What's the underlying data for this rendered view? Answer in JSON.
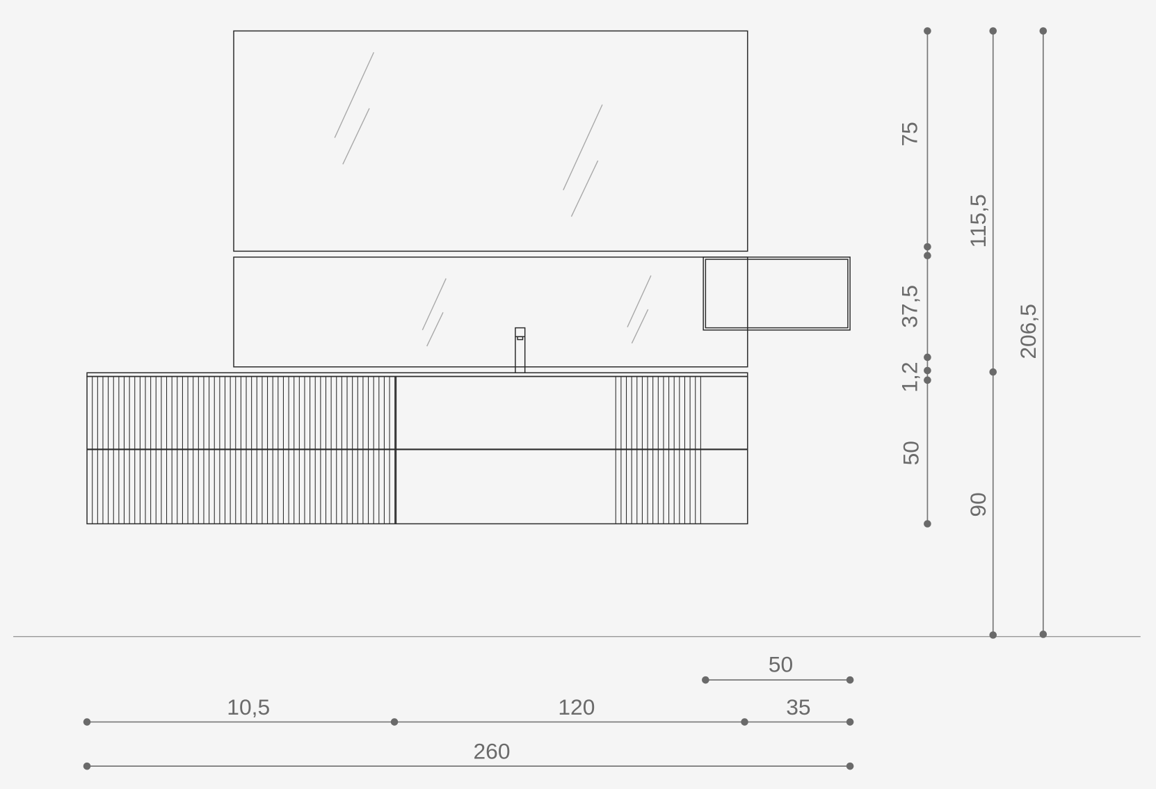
{
  "drawing": {
    "colors": {
      "background": "#f5f5f5",
      "outline": "#2a2a2a",
      "dimension": "#6a6a6a",
      "glass_reflection": "#a8a8a8"
    },
    "vertical_dimensions": {
      "mirror_upper": "75",
      "mirror_lower": "37,5",
      "worktop": "1,2",
      "cabinet": "50",
      "top_to_worktop": "115,5",
      "floor_to_worktop": "90",
      "total_height": "206,5"
    },
    "horizontal_dimensions": {
      "shelf_width": "50",
      "left_unit": "10,5",
      "center_unit": "120",
      "right_overhang": "35",
      "total_width": "260"
    }
  }
}
